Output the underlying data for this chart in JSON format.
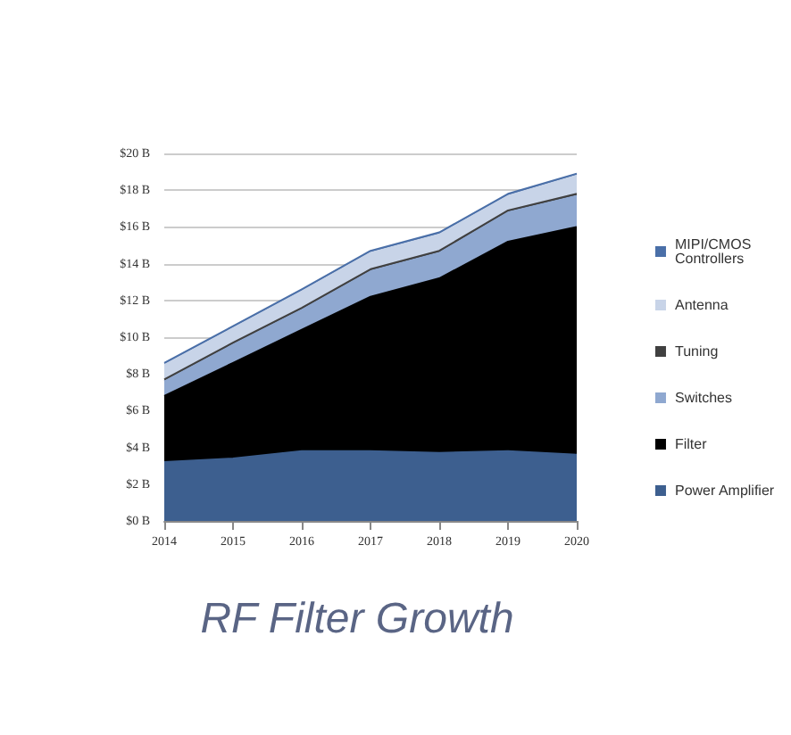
{
  "chart_data": {
    "type": "area",
    "title": "RF Filter Growth",
    "categories": [
      "2014",
      "2015",
      "2016",
      "2017",
      "2018",
      "2019",
      "2020"
    ],
    "stacked": true,
    "series": [
      {
        "name": "Power Amplifier",
        "color": "#3d5f8f",
        "values": [
          3.2,
          3.4,
          3.8,
          3.8,
          3.7,
          3.8,
          3.6
        ]
      },
      {
        "name": "Filter",
        "color": "#000000",
        "values": [
          3.6,
          5.2,
          6.6,
          8.4,
          9.5,
          11.4,
          12.4
        ]
      },
      {
        "name": "Switches",
        "color": "#8fa8d0",
        "values": [
          0.8,
          1.0,
          1.1,
          1.4,
          1.4,
          1.6,
          1.7
        ]
      },
      {
        "name": "Tuning",
        "color": "#404040",
        "values": [
          0.1,
          0.1,
          0.1,
          0.1,
          0.1,
          0.1,
          0.1
        ]
      },
      {
        "name": "Antenna",
        "color": "#c8d4e8",
        "values": [
          0.8,
          0.8,
          0.9,
          0.9,
          0.9,
          0.8,
          1.0
        ]
      },
      {
        "name": "MIPI/CMOS Controllers",
        "color": "#4a6fa8",
        "values": [
          0.1,
          0.1,
          0.1,
          0.1,
          0.1,
          0.1,
          0.1
        ]
      }
    ],
    "ylim": [
      0,
      20
    ],
    "yticks": [
      {
        "value": 0,
        "label": "$0 B"
      },
      {
        "value": 2,
        "label": "$2 B"
      },
      {
        "value": 4,
        "label": "$4 B"
      },
      {
        "value": 6,
        "label": "$6 B"
      },
      {
        "value": 8,
        "label": "$8 B"
      },
      {
        "value": 10,
        "label": "$10 B"
      },
      {
        "value": 12,
        "label": "$12 B"
      },
      {
        "value": 14,
        "label": "$14 B"
      },
      {
        "value": 16,
        "label": "$16 B"
      },
      {
        "value": 18,
        "label": "$18 B"
      },
      {
        "value": 20,
        "label": "$20 B"
      }
    ],
    "grid": "y",
    "legend": "right"
  }
}
